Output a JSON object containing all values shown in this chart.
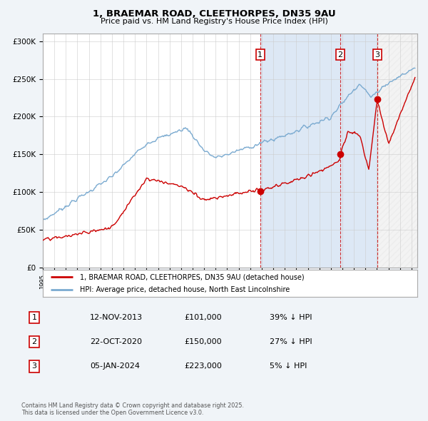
{
  "title": "1, BRAEMAR ROAD, CLEETHORPES, DN35 9AU",
  "subtitle": "Price paid vs. HM Land Registry's House Price Index (HPI)",
  "hpi_color": "#7aaad0",
  "price_color": "#cc0000",
  "background_color": "#f0f4f8",
  "plot_bg": "#ffffff",
  "shade_color": "#dde8f5",
  "ylim": [
    0,
    310000
  ],
  "xlim_start": 1995.0,
  "xlim_end": 2027.5,
  "yticks": [
    0,
    50000,
    100000,
    150000,
    200000,
    250000,
    300000
  ],
  "transactions": [
    {
      "label": "1",
      "date_num": 2013.87,
      "price": 101000,
      "date_str": "12-NOV-2013",
      "pct_str": "39% ↓ HPI"
    },
    {
      "label": "2",
      "date_num": 2020.81,
      "price": 150000,
      "date_str": "22-OCT-2020",
      "pct_str": "27% ↓ HPI"
    },
    {
      "label": "3",
      "date_num": 2024.03,
      "price": 223000,
      "date_str": "05-JAN-2024",
      "pct_str": "5% ↓ HPI"
    }
  ],
  "legend_line1": "1, BRAEMAR ROAD, CLEETHORPES, DN35 9AU (detached house)",
  "legend_line2": "HPI: Average price, detached house, North East Lincolnshire",
  "footer": "Contains HM Land Registry data © Crown copyright and database right 2025.\nThis data is licensed under the Open Government Licence v3.0.",
  "table_rows": [
    [
      "1",
      "12-NOV-2013",
      "£101,000",
      "39% ↓ HPI"
    ],
    [
      "2",
      "22-OCT-2020",
      "£150,000",
      "27% ↓ HPI"
    ],
    [
      "3",
      "05-JAN-2024",
      "£223,000",
      "5% ↓ HPI"
    ]
  ]
}
